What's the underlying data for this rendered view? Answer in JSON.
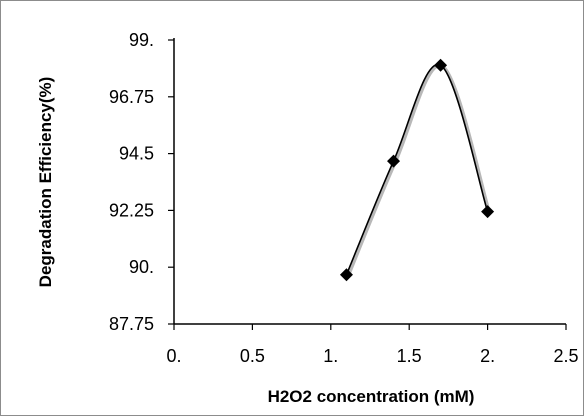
{
  "chart_data": {
    "type": "scatter",
    "title": "",
    "xlabel": "H2O2  concentration (mM)",
    "ylabel": "Degradation Efficiency(%)",
    "xlim": [
      0,
      2.5
    ],
    "ylim": [
      87.75,
      99
    ],
    "xticks": [
      "0.",
      "0.5",
      "1.",
      "1.5",
      "2.",
      "2.5"
    ],
    "xtick_values": [
      0,
      0.5,
      1,
      1.5,
      2,
      2.5
    ],
    "yticks": [
      "87.75",
      "90.",
      "92.25",
      "94.5",
      "96.75",
      "99."
    ],
    "ytick_values": [
      87.75,
      90,
      92.25,
      94.5,
      96.75,
      99
    ],
    "grid": false,
    "smooth_line": true,
    "series": [
      {
        "x": [
          1.1,
          1.4,
          1.7,
          2.0
        ],
        "values": [
          89.7,
          94.2,
          98.0,
          92.2
        ],
        "marker": "diamond",
        "color": "#000000"
      }
    ]
  }
}
